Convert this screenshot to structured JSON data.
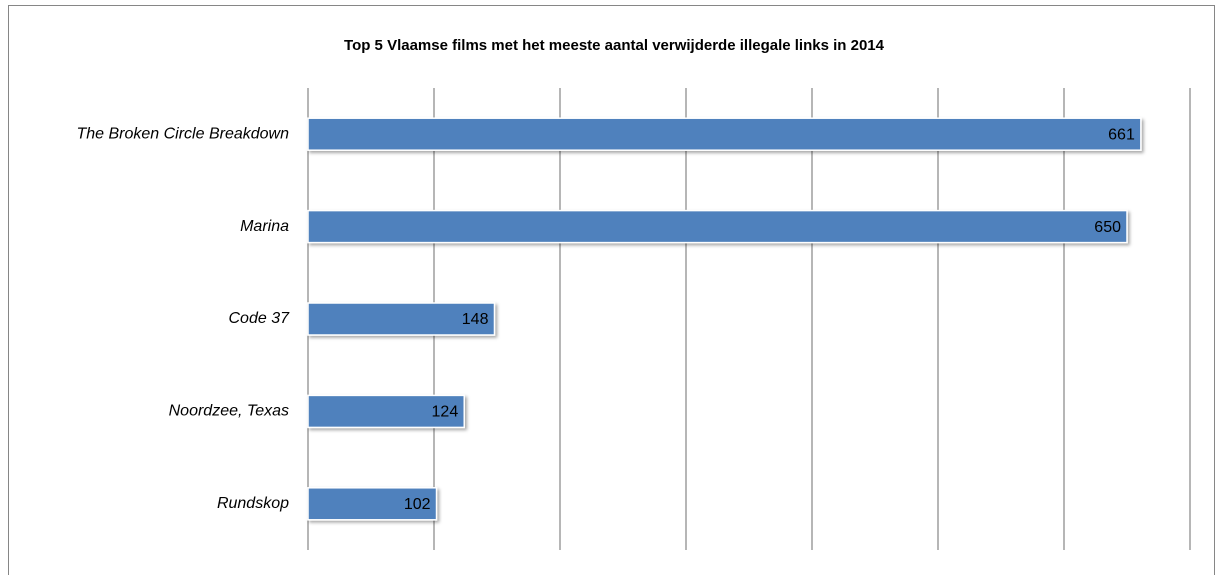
{
  "chart_data": {
    "type": "bar",
    "orientation": "horizontal",
    "title": "Top 5 Vlaamse films met het meeste aantal verwijderde illegale links in 2014",
    "categories": [
      "The Broken Circle Breakdown",
      "Marina",
      "Code 37",
      "Noordzee, Texas",
      "Rundskop"
    ],
    "values": [
      661,
      650,
      148,
      124,
      102
    ],
    "color": "#4f81bd",
    "xlim": [
      0,
      700
    ],
    "xticks": [
      0,
      100,
      200,
      300,
      400,
      500,
      600,
      700
    ],
    "grid": true
  }
}
